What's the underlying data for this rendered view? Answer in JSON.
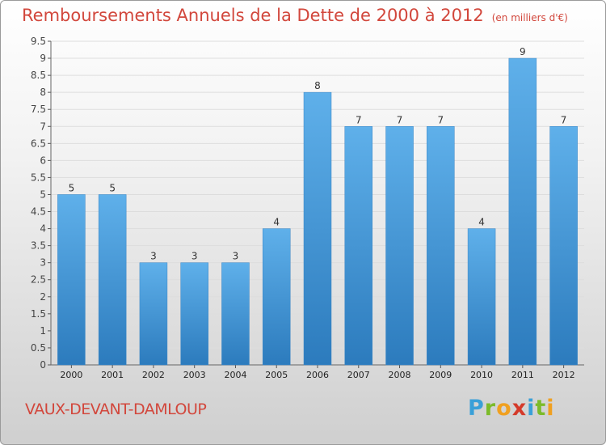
{
  "title": "Remboursements Annuels de la Dette de 2000 à 2012",
  "unit": "(en milliers d'€)",
  "commune": "VAUX-DEVANT-DAMLOUP",
  "logo": {
    "letters": [
      "P",
      "r",
      "o",
      "x",
      "i",
      "t",
      "i"
    ],
    "colors": [
      "#3aa0d8",
      "#7cbb2a",
      "#f0a020",
      "#d43a2a",
      "#3aa0d8",
      "#7cbb2a",
      "#f0a020"
    ]
  },
  "chart_data": {
    "type": "bar",
    "categories": [
      "2000",
      "2001",
      "2002",
      "2003",
      "2004",
      "2005",
      "2006",
      "2007",
      "2008",
      "2009",
      "2010",
      "2011",
      "2012"
    ],
    "values": [
      5,
      5,
      3,
      3,
      3,
      4,
      8,
      7,
      7,
      7,
      4,
      9,
      7
    ],
    "data_labels": [
      "5",
      "5",
      "3",
      "3",
      "3",
      "4",
      "8",
      "7",
      "7",
      "7",
      "4",
      "9",
      "7"
    ],
    "yticks": [
      0,
      0.5,
      1,
      1.5,
      2,
      2.5,
      3,
      3.5,
      4,
      4.5,
      5,
      5.5,
      6,
      6.5,
      7,
      7.5,
      8,
      8.5,
      9,
      9.5
    ],
    "ytick_labels": [
      "0",
      "0.5",
      "1",
      "1.5",
      "2",
      "2.5",
      "3",
      "3.5",
      "4",
      "4.5",
      "5",
      "5.5",
      "6",
      "6.5",
      "7",
      "7.5",
      "8",
      "8.5",
      "9",
      "9.5"
    ],
    "ylim": [
      0,
      9.5
    ],
    "grid": true,
    "bar_color": "#5aaae6"
  }
}
